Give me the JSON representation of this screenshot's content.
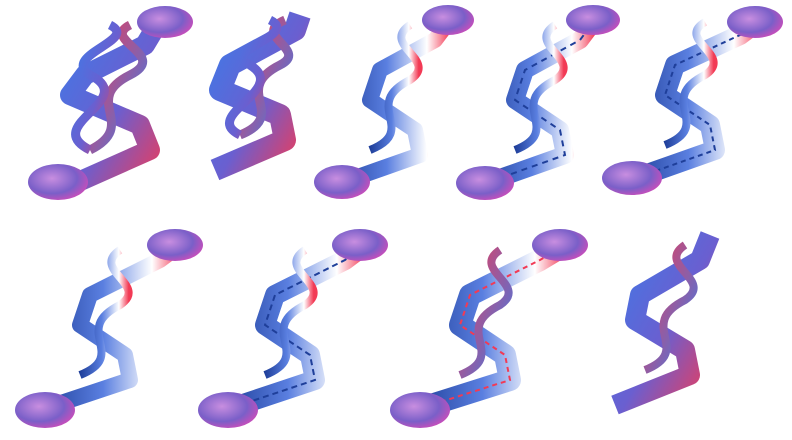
{
  "palette": {
    "blue": "#3d7be8",
    "blue_dark": "#1f3f9a",
    "red": "#f23a55",
    "magenta": "#d94ab8",
    "violet": "#6a5fd0",
    "white": "#ffffff"
  },
  "panels": [
    {
      "style": "flat-ribbon",
      "dragon_heads": true
    },
    {
      "style": "flat-ribbon",
      "dragon_heads": false
    },
    {
      "style": "tube-helix",
      "dragon_heads": true
    },
    {
      "style": "twisted-rope",
      "dragon_heads": true
    },
    {
      "style": "twisted-rope",
      "dragon_heads": true
    },
    {
      "style": "tube-helix",
      "dragon_heads": true
    },
    {
      "style": "twisted-rope",
      "dragon_heads": true
    },
    {
      "style": "twisted-rope",
      "dragon_heads": true
    },
    {
      "style": "flat-ribbon",
      "dragon_heads": false
    }
  ]
}
